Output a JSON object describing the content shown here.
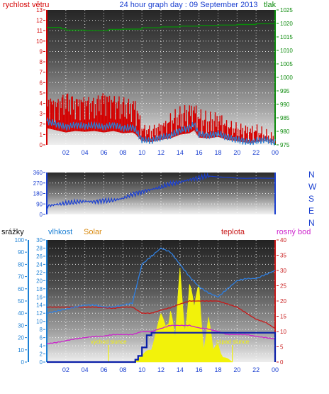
{
  "title": "24 hour graph day : 09 September 2013",
  "colors": {
    "wind": "#d40000",
    "wind_avg": "#2a7fd4",
    "pressure": "#0a8a0a",
    "direction": "#1a3fd0",
    "humidity": "#2f7fe0",
    "temperature": "#c81818",
    "dew": "#cc22cc",
    "rain": "#0b1fa8",
    "solar": "#f2f20a",
    "solar_label": "#d98a10",
    "axis_left3": "#1a7fd4"
  },
  "x_ticks": [
    "02",
    "04",
    "06",
    "08",
    "10",
    "12",
    "14",
    "16",
    "18",
    "20",
    "22",
    "00"
  ],
  "chart_data": [
    {
      "type": "line",
      "name": "wind-pressure",
      "left_axis_label": "rychlost větru",
      "right_axis_label": "tlak",
      "yleft_ticks": [
        "0",
        "1",
        "2",
        "3",
        "4",
        "5",
        "6",
        "7",
        "8",
        "9",
        "10",
        "11",
        "12",
        "13"
      ],
      "yleft_lim": [
        0,
        13
      ],
      "yright_ticks": [
        "975",
        "980",
        "985",
        "990",
        "995",
        "1000",
        "1005",
        "1010",
        "1015",
        "1020",
        "1025"
      ],
      "yright_lim": [
        975,
        1025
      ],
      "series": [
        {
          "key": "gust",
          "x": [
            0,
            1,
            2,
            3,
            4,
            5,
            6,
            7,
            8,
            9,
            9.3,
            10,
            11,
            12,
            13,
            14,
            15,
            15.5,
            16,
            17,
            18,
            19,
            20,
            21,
            21.5,
            22,
            23,
            24
          ],
          "values": [
            4.0,
            3.6,
            4.2,
            3.8,
            3.9,
            3.6,
            4.3,
            3.9,
            3.6,
            3.5,
            3.6,
            1.4,
            1.2,
            1.6,
            2.1,
            2.6,
            3.0,
            3.2,
            2.4,
            2.0,
            2.2,
            1.7,
            1.4,
            1.3,
            1.2,
            1.3,
            0.8,
            0.4
          ]
        },
        {
          "key": "avg",
          "x": [
            0,
            1,
            2,
            3,
            4,
            5,
            6,
            7,
            8,
            9,
            9.3,
            10,
            11,
            12,
            13,
            14,
            15,
            15.5,
            16,
            17,
            18,
            19,
            20,
            21,
            21.5,
            22,
            23,
            24
          ],
          "values": [
            2.3,
            2.0,
            1.7,
            1.9,
            1.8,
            1.9,
            1.7,
            1.9,
            1.6,
            1.7,
            1.5,
            0.5,
            0.4,
            0.7,
            0.9,
            1.4,
            1.6,
            2.0,
            1.0,
            0.9,
            1.1,
            0.7,
            0.5,
            0.3,
            0.2,
            0.4,
            0.5,
            0.2
          ]
        },
        {
          "key": "pressure",
          "x": [
            0,
            1.5,
            2,
            4,
            6,
            6.5,
            8,
            10,
            12,
            14,
            16,
            18,
            20,
            22,
            24
          ],
          "values": [
            1018.5,
            1018.0,
            1017.5,
            1017.3,
            1017.3,
            1017.8,
            1017.9,
            1018.4,
            1018.7,
            1019.0,
            1019.2,
            1019.4,
            1019.6,
            1019.9,
            1020.7
          ]
        }
      ]
    },
    {
      "type": "line",
      "name": "wind-direction",
      "ylim": [
        0,
        360
      ],
      "yleft_ticks": [
        "0",
        "90",
        "180",
        "270",
        "360"
      ],
      "direction_labels": [
        "N",
        "W",
        "S",
        "E",
        "N"
      ],
      "series": [
        {
          "key": "direction",
          "x": [
            0,
            1,
            2,
            3,
            4,
            5,
            6,
            7,
            8,
            9,
            10,
            11,
            12,
            13,
            14,
            15,
            16,
            17,
            18,
            19,
            20,
            21,
            22,
            23,
            24
          ],
          "values": [
            72,
            85,
            95,
            105,
            112,
            110,
            118,
            120,
            138,
            172,
            195,
            215,
            232,
            262,
            278,
            298,
            315,
            330,
            322,
            318,
            312,
            310,
            312,
            311,
            310
          ]
        }
      ]
    },
    {
      "type": "area",
      "name": "rain-humidity-temp",
      "rain_label": "srážky",
      "humidity_label": "vlhkost",
      "solar_label": "Solar",
      "temp_label": "teplota",
      "dew_label": "rosný bod",
      "sunrise_label": "východ slunce",
      "sunset_label": "západ slunce",
      "y_rain_ticks": [
        "0",
        "10",
        "20",
        "30",
        "40",
        "50",
        "60",
        "70",
        "80",
        "90",
        "100"
      ],
      "y_hum_ticks": [
        "0",
        "2",
        "4",
        "6",
        "8",
        "10",
        "12",
        "14",
        "16",
        "18",
        "20",
        "22",
        "24",
        "26",
        "28",
        "30"
      ],
      "y_temp_ticks": [
        "0",
        "5",
        "10",
        "15",
        "20",
        "25",
        "30",
        "35",
        "40"
      ],
      "y_rain_lim": [
        0,
        100
      ],
      "y_hum_lim": [
        0,
        30
      ],
      "y_temp_lim": [
        0,
        40
      ],
      "sunrise_hour": 6.5,
      "sunset_hour": 19.5,
      "series": [
        {
          "key": "humidity",
          "x": [
            0,
            1,
            2,
            3,
            4,
            5,
            6,
            7,
            8,
            9,
            10,
            11,
            12,
            13,
            14,
            15,
            16,
            17,
            18,
            19,
            20,
            21,
            22,
            23,
            24
          ],
          "values": [
            12,
            12.5,
            13,
            13.5,
            14,
            14,
            13.5,
            13.5,
            14,
            14.5,
            24,
            26,
            28,
            27,
            24,
            21,
            18.5,
            17,
            16,
            18,
            20,
            20.5,
            20.5,
            21.5,
            22.5
          ]
        },
        {
          "key": "temperature",
          "x": [
            0,
            1,
            2,
            3,
            4,
            5,
            6,
            7,
            8,
            9,
            10,
            11,
            12,
            13,
            14,
            15,
            16,
            17,
            18,
            19,
            20,
            21,
            22,
            23,
            24
          ],
          "values": [
            18,
            18,
            18,
            18,
            18,
            18,
            17.8,
            17.6,
            18,
            18,
            16,
            16,
            17,
            17.8,
            19,
            20,
            20,
            20,
            20,
            19,
            18,
            16,
            14,
            13,
            11
          ]
        },
        {
          "key": "dew",
          "x": [
            0,
            1,
            2,
            3,
            4,
            5,
            6,
            7,
            8,
            9,
            10,
            11,
            12,
            13,
            14,
            15,
            16,
            17,
            18,
            19,
            20,
            21,
            22,
            23,
            24
          ],
          "values": [
            6,
            6.4,
            7,
            7.6,
            8,
            8.4,
            8.5,
            9,
            9,
            9,
            10,
            10,
            11,
            12,
            12,
            12,
            11.2,
            10.8,
            10,
            9,
            9,
            9,
            8.4,
            8,
            7.6
          ]
        },
        {
          "key": "solar",
          "x": [
            6.5,
            9,
            10,
            11,
            12,
            12.5,
            13,
            13.5,
            14,
            14.5,
            15,
            15.5,
            16,
            16.5,
            17,
            17.5,
            18,
            18.5,
            19,
            19.5
          ],
          "values": [
            0,
            0,
            5,
            15,
            40,
            35,
            55,
            20,
            80,
            35,
            75,
            45,
            70,
            15,
            40,
            10,
            18,
            5,
            3,
            0
          ]
        },
        {
          "key": "rain",
          "x": [
            0,
            9,
            9.3,
            9.6,
            10,
            10.5,
            11,
            12,
            24
          ],
          "values": [
            0,
            0,
            2,
            5,
            12,
            22,
            24,
            24,
            24
          ]
        }
      ]
    }
  ]
}
